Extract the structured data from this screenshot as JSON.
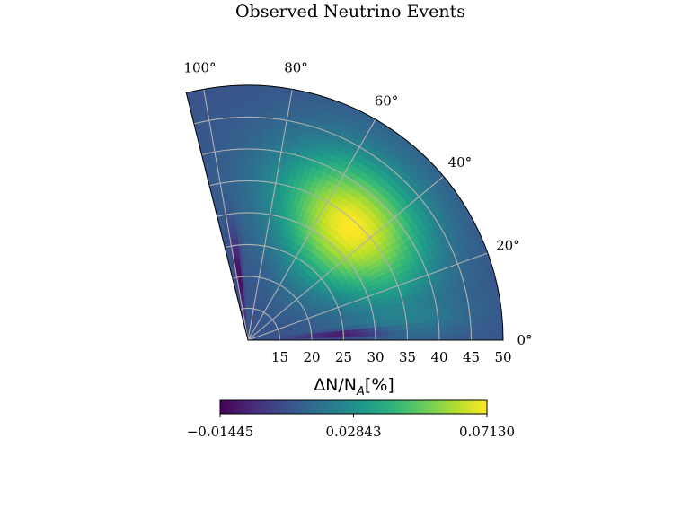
{
  "chart_data": {
    "type": "heatmap",
    "projection": "polar-sector",
    "title": "Observed Neutrino Events",
    "angle_unit": "degrees",
    "theta_range": [
      0,
      104
    ],
    "r_range": [
      10,
      50
    ],
    "theta_ticks": [
      "0°",
      "20°",
      "40°",
      "60°",
      "80°",
      "100°"
    ],
    "theta_tick_values": [
      0,
      20,
      40,
      60,
      80,
      100
    ],
    "r_ticks": [
      "15",
      "20",
      "25",
      "30",
      "35",
      "40",
      "45",
      "50"
    ],
    "r_tick_values": [
      15,
      20,
      25,
      30,
      35,
      40,
      45,
      50
    ],
    "grid": true,
    "colormap": "viridis",
    "colorbar": {
      "label": "ΔN/N_A[%]",
      "label_main": "ΔN/N",
      "label_sub": "A",
      "label_tail": "[%]",
      "orientation": "horizontal",
      "placement": "bottom",
      "range": [
        -0.01445,
        0.0713
      ],
      "ticks": [
        "−0.01445",
        "0.02843",
        "0.07130"
      ],
      "tick_values": [
        -0.01445,
        0.02843,
        0.0713
      ]
    },
    "features": [
      {
        "kind": "peak",
        "theta": 48,
        "r": 34,
        "value": 0.0713
      },
      {
        "kind": "trough",
        "theta": 4,
        "r": 25,
        "value": -0.01445
      },
      {
        "kind": "trough",
        "theta": 98,
        "r": 20,
        "value": -0.01445
      }
    ]
  }
}
